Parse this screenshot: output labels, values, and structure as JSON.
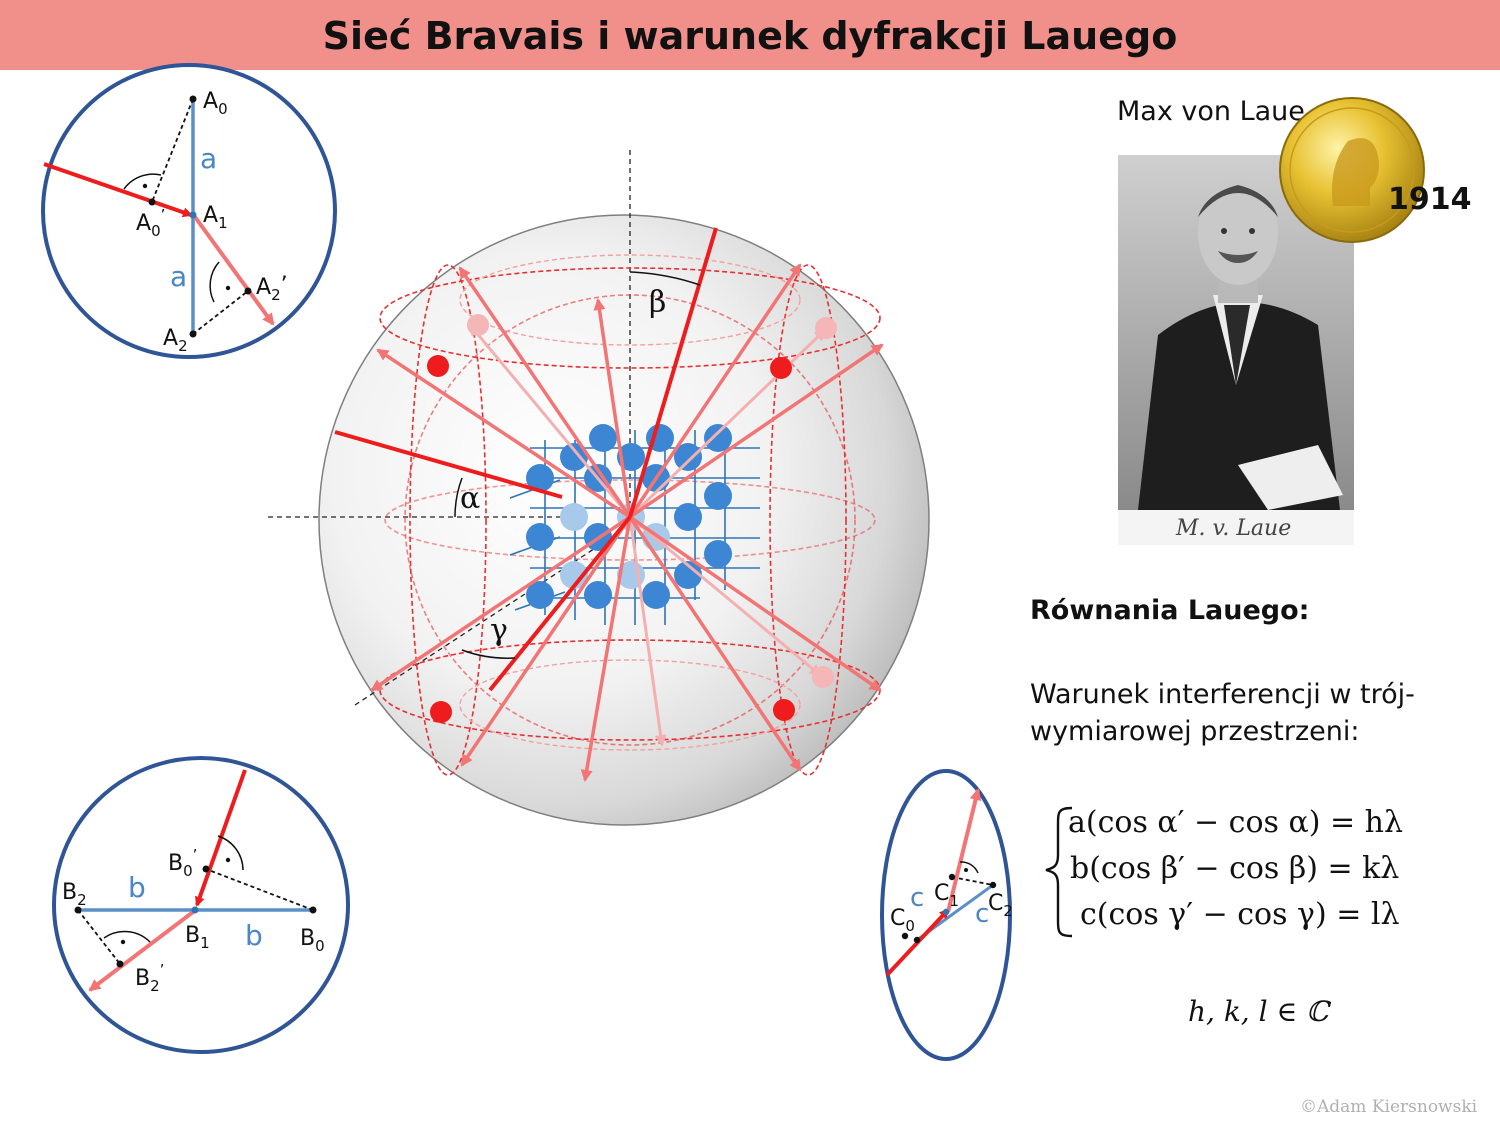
{
  "title": "Sieć Bravais i warunek dyfrakcji Lauego",
  "portrait": {
    "name": "Max von Laue",
    "year": "1914",
    "signature": "M. v. Laue"
  },
  "equations": {
    "heading": "Równania Lauego:",
    "description": "Warunek interferencji w trój-wymiarowej przestrzeni:",
    "lines": [
      "a(cos α′ − cos α) = hλ",
      "b(cos β′ − cos β) = kλ",
      "c(cos γ′ − cos γ) = lλ"
    ],
    "condition": "h, k, l ∈ ℂ"
  },
  "sphere_labels": {
    "alpha": "α",
    "beta": "β",
    "gamma": "γ"
  },
  "inset_a": {
    "a0": "A",
    "a0_sub": "0",
    "a0p": "A",
    "a0p_sub": "0",
    "a0p_sup": "’",
    "a1": "A",
    "a1_sub": "1",
    "a2p": "A",
    "a2p_sub": "2",
    "a2p_sup": "’",
    "a2": "A",
    "a2_sub": "2",
    "len1": "a",
    "len2": "a"
  },
  "inset_b": {
    "b0": "B",
    "b0_sub": "0",
    "b0p": "B",
    "b0p_sub": "0",
    "b0p_sup": "’",
    "b1": "B",
    "b1_sub": "1",
    "b2p": "B",
    "b2p_sub": "2",
    "b2p_sup": "’",
    "b2": "B",
    "b2_sub": "2",
    "len1": "b",
    "len2": "b"
  },
  "inset_c": {
    "c0": "C",
    "c0_sub": "0",
    "c1": "C",
    "c1_sub": "1",
    "c2": "C",
    "c2_sub": "2",
    "len1": "c",
    "len2": "c"
  },
  "copyright": "©Adam Kiersnowski",
  "colors": {
    "title_bar": "#f1908a",
    "circle": "#2f5597",
    "ray": "#ee1c1c",
    "ray_light": "#f28080",
    "lattice": "#2e75b6"
  }
}
